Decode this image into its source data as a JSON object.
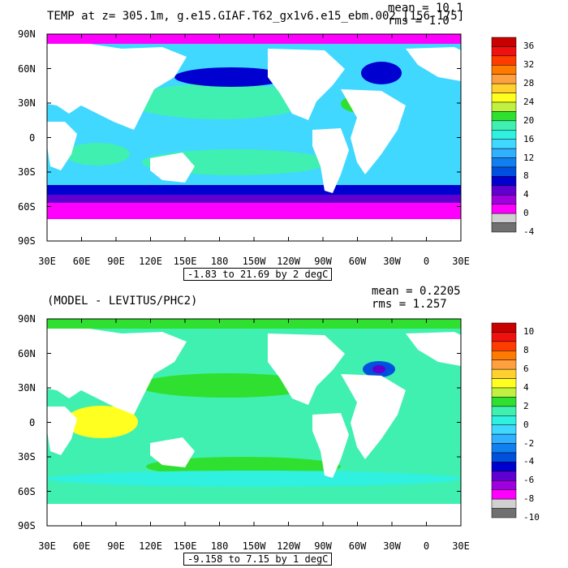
{
  "top": {
    "title": "TEMP at z= 305.1m, g.e15.GIAF.T62_gx1v6.e15_ebm.002 [156-175]",
    "mean": "mean = 10.1",
    "rms": "rms = 1.0",
    "range": "-1.83 to 21.69 by 2 degC",
    "lat_ticks": [
      "90N",
      "60N",
      "30N",
      "0",
      "30S",
      "60S",
      "90S"
    ],
    "lon_ticks": [
      "30E",
      "60E",
      "90E",
      "120E",
      "150E",
      "180",
      "150W",
      "120W",
      "90W",
      "60W",
      "30W",
      "0",
      "30E"
    ],
    "colorbar": {
      "labels": [
        "36",
        "32",
        "28",
        "24",
        "20",
        "16",
        "12",
        "8",
        "4",
        "0",
        "-4"
      ],
      "colors": [
        "#c80000",
        "#f01010",
        "#ff3c00",
        "#ff7a00",
        "#ffa040",
        "#ffd030",
        "#ffff20",
        "#c0f040",
        "#30e030",
        "#40f0b0",
        "#30f0e0",
        "#40d8ff",
        "#30b0ff",
        "#1080f0",
        "#0050e0",
        "#0000d0",
        "#6000d0",
        "#a000e0",
        "#ff00ff",
        "#d0d0d0",
        "#707070"
      ]
    }
  },
  "bottom": {
    "title": "(MODEL - LEVITUS/PHC2)",
    "mean": "mean = 0.2205",
    "rms": "rms = 1.257",
    "range": "-9.158 to 7.15 by 1 degC",
    "lat_ticks": [
      "90N",
      "60N",
      "30N",
      "0",
      "30S",
      "60S",
      "90S"
    ],
    "lon_ticks": [
      "30E",
      "60E",
      "90E",
      "120E",
      "150E",
      "180",
      "150W",
      "120W",
      "90W",
      "60W",
      "30W",
      "0",
      "30E"
    ],
    "colorbar": {
      "labels": [
        "10",
        "8",
        "6",
        "4",
        "2",
        "0",
        "-2",
        "-4",
        "-6",
        "-8",
        "-10"
      ],
      "colors": [
        "#c80000",
        "#f01010",
        "#ff3c00",
        "#ff7a00",
        "#ffa040",
        "#ffd030",
        "#ffff20",
        "#c0f040",
        "#30e030",
        "#40f0b0",
        "#30f0e0",
        "#40d8ff",
        "#30b0ff",
        "#1080f0",
        "#0050e0",
        "#0000d0",
        "#6000d0",
        "#a000e0",
        "#ff00ff",
        "#d0d0d0",
        "#707070"
      ]
    }
  }
}
